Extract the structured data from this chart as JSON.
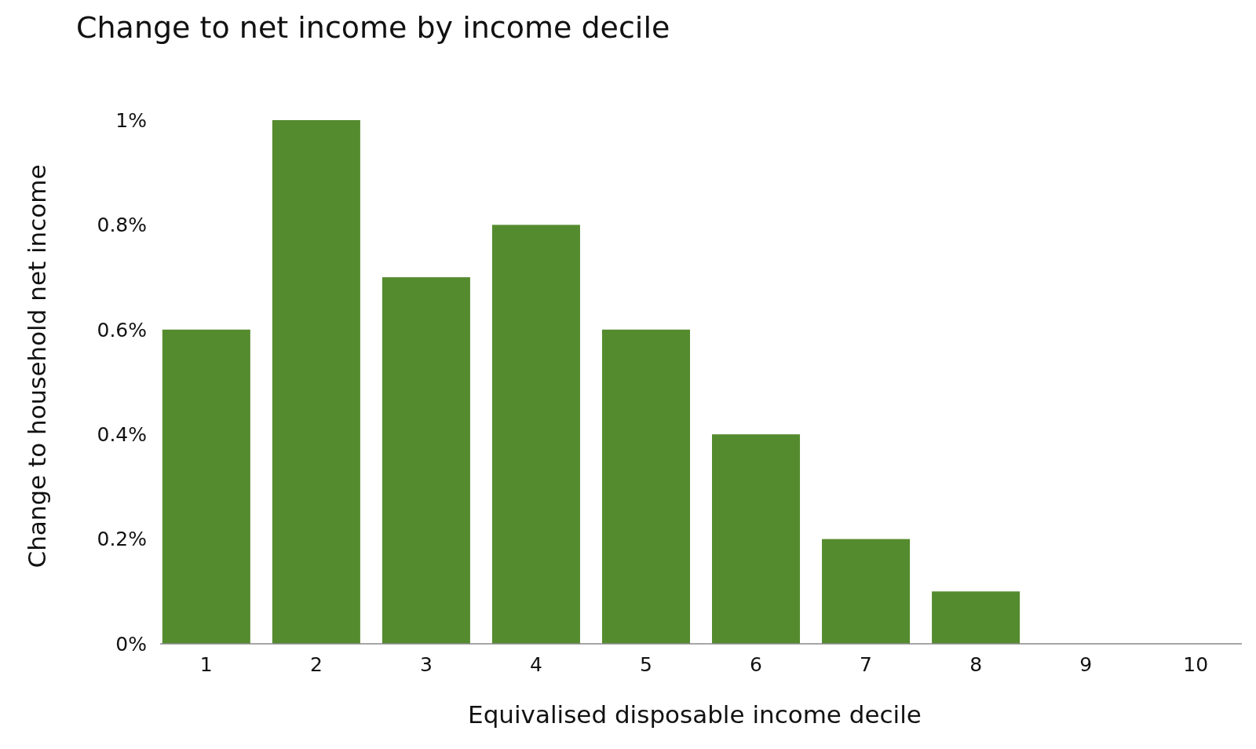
{
  "chart_data": {
    "type": "bar",
    "title": "Change to net income by income decile",
    "xlabel": "Equivalised disposable income decile",
    "ylabel": "Change to household net income",
    "categories": [
      "1",
      "2",
      "3",
      "4",
      "5",
      "6",
      "7",
      "8",
      "9",
      "10"
    ],
    "values": [
      0.6,
      1.0,
      0.7,
      0.8,
      0.6,
      0.4,
      0.2,
      0.1,
      0,
      0
    ],
    "color": "#558b2f",
    "ylim": [
      0,
      1
    ],
    "yticks": [
      {
        "value": 0,
        "label": "0%"
      },
      {
        "value": 0.2,
        "label": "0.2%"
      },
      {
        "value": 0.4,
        "label": "0.4%"
      },
      {
        "value": 0.6,
        "label": "0.6%"
      },
      {
        "value": 0.8,
        "label": "0.8%"
      },
      {
        "value": 1,
        "label": "1%"
      }
    ],
    "grid": false
  }
}
